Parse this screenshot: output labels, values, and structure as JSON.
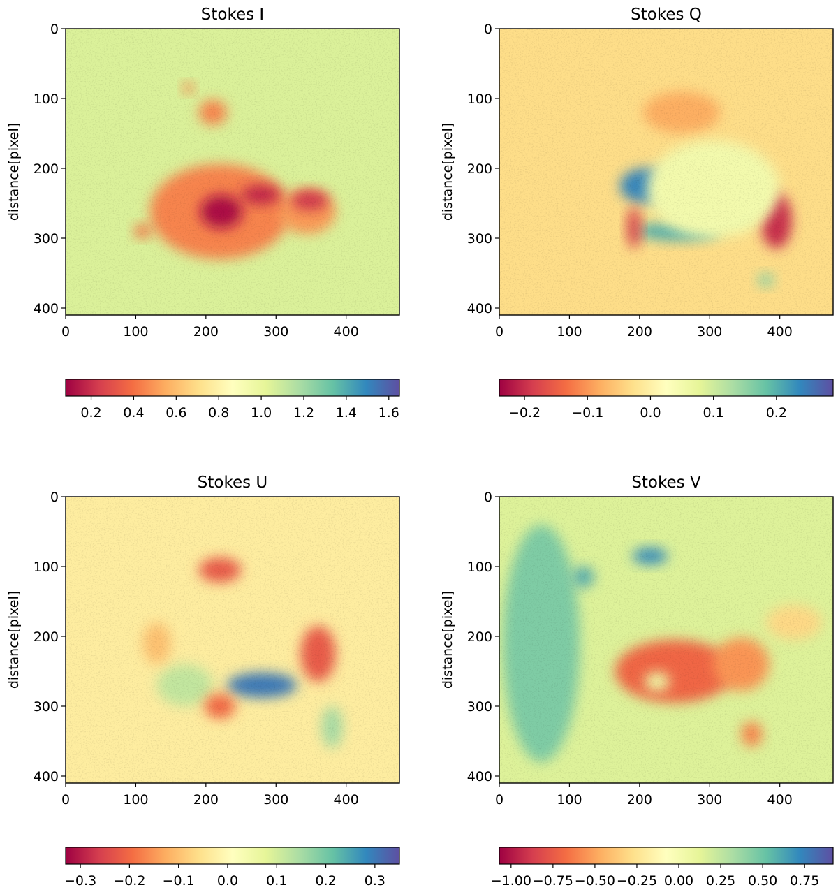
{
  "figure": {
    "y_label": "distance[pixel]"
  },
  "chart_data": [
    {
      "type": "heatmap",
      "title": "Stokes I",
      "xlabel": "",
      "ylabel": "distance[pixel]",
      "xlim": [
        0,
        476
      ],
      "ylim": [
        410,
        0
      ],
      "x_ticks": [
        0,
        100,
        200,
        300,
        400
      ],
      "y_ticks": [
        0,
        100,
        200,
        300,
        400
      ],
      "colormap": "Spectral",
      "colorbar": {
        "range": [
          0.08,
          1.65
        ],
        "ticks": [
          "0.2",
          "0.4",
          "0.6",
          "0.8",
          "1.0",
          "1.2",
          "1.4",
          "1.6"
        ],
        "tick_values": [
          0.2,
          0.4,
          0.6,
          0.8,
          1.0,
          1.2,
          1.4,
          1.6
        ]
      },
      "background_value": 1.05,
      "features": [
        {
          "x": 220,
          "y": 262,
          "rx": 100,
          "ry": 68,
          "value": 0.45
        },
        {
          "x": 345,
          "y": 262,
          "rx": 40,
          "ry": 32,
          "value": 0.5
        },
        {
          "x": 222,
          "y": 262,
          "rx": 30,
          "ry": 24,
          "value": 0.12
        },
        {
          "x": 278,
          "y": 238,
          "rx": 28,
          "ry": 14,
          "value": 0.18
        },
        {
          "x": 348,
          "y": 246,
          "rx": 26,
          "ry": 14,
          "value": 0.22
        },
        {
          "x": 210,
          "y": 120,
          "rx": 20,
          "ry": 18,
          "value": 0.45
        },
        {
          "x": 110,
          "y": 290,
          "rx": 12,
          "ry": 10,
          "value": 0.4
        },
        {
          "x": 175,
          "y": 85,
          "rx": 8,
          "ry": 8,
          "value": 0.45
        }
      ]
    },
    {
      "type": "heatmap",
      "title": "Stokes Q",
      "xlabel": "",
      "ylabel": "distance[pixel]",
      "xlim": [
        0,
        476
      ],
      "ylim": [
        410,
        0
      ],
      "x_ticks": [
        0,
        100,
        200,
        300,
        400
      ],
      "y_ticks": [
        0,
        100,
        200,
        300,
        400
      ],
      "colormap": "Spectral",
      "colorbar": {
        "range": [
          -0.24,
          0.29
        ],
        "ticks": [
          "−0.2",
          "−0.1",
          "0.0",
          "0.1",
          "0.2"
        ],
        "tick_values": [
          -0.2,
          -0.1,
          0.0,
          0.1,
          0.2
        ]
      },
      "background_value": -0.03,
      "features": [
        {
          "x": 210,
          "y": 225,
          "rx": 38,
          "ry": 25,
          "value": 0.24
        },
        {
          "x": 255,
          "y": 290,
          "rx": 60,
          "ry": 14,
          "value": 0.2
        },
        {
          "x": 330,
          "y": 262,
          "rx": 25,
          "ry": 12,
          "value": 0.15
        },
        {
          "x": 395,
          "y": 275,
          "rx": 22,
          "ry": 40,
          "value": -0.2
        },
        {
          "x": 192,
          "y": 285,
          "rx": 10,
          "ry": 30,
          "value": -0.18
        },
        {
          "x": 380,
          "y": 360,
          "rx": 12,
          "ry": 10,
          "value": 0.15
        },
        {
          "x": 260,
          "y": 120,
          "rx": 55,
          "ry": 30,
          "value": -0.08
        },
        {
          "x": 305,
          "y": 230,
          "rx": 95,
          "ry": 70,
          "value": 0.05
        }
      ]
    },
    {
      "type": "heatmap",
      "title": "Stokes U",
      "xlabel": "",
      "ylabel": "distance[pixel]",
      "xlim": [
        0,
        476
      ],
      "ylim": [
        410,
        0
      ],
      "x_ticks": [
        0,
        100,
        200,
        300,
        400
      ],
      "y_ticks": [
        0,
        100,
        200,
        300,
        400
      ],
      "colormap": "Spectral",
      "colorbar": {
        "range": [
          -0.33,
          0.35
        ],
        "ticks": [
          "−0.3",
          "−0.2",
          "−0.1",
          "0.0",
          "0.1",
          "0.2",
          "0.3"
        ],
        "tick_values": [
          -0.3,
          -0.2,
          -0.1,
          0.0,
          0.1,
          0.2,
          0.3
        ]
      },
      "background_value": -0.03,
      "features": [
        {
          "x": 280,
          "y": 270,
          "rx": 50,
          "ry": 18,
          "value": 0.3
        },
        {
          "x": 170,
          "y": 270,
          "rx": 40,
          "ry": 30,
          "value": 0.12
        },
        {
          "x": 220,
          "y": 105,
          "rx": 30,
          "ry": 18,
          "value": -0.22
        },
        {
          "x": 360,
          "y": 225,
          "rx": 25,
          "ry": 40,
          "value": -0.22
        },
        {
          "x": 220,
          "y": 300,
          "rx": 22,
          "ry": 18,
          "value": -0.2
        },
        {
          "x": 380,
          "y": 330,
          "rx": 15,
          "ry": 30,
          "value": 0.15
        },
        {
          "x": 130,
          "y": 210,
          "rx": 20,
          "ry": 30,
          "value": -0.1
        }
      ]
    },
    {
      "type": "heatmap",
      "title": "Stokes V",
      "xlabel": "",
      "ylabel": "distance[pixel]",
      "xlim": [
        0,
        476
      ],
      "ylim": [
        410,
        0
      ],
      "x_ticks": [
        0,
        100,
        200,
        300,
        400
      ],
      "y_ticks": [
        0,
        100,
        200,
        300,
        400
      ],
      "colormap": "Spectral",
      "colorbar": {
        "range": [
          -1.07,
          0.92
        ],
        "ticks": [
          "−1.00",
          "−0.75",
          "−0.50",
          "−0.25",
          "0.00",
          "0.25",
          "0.50",
          "0.75"
        ],
        "tick_values": [
          -1.0,
          -0.75,
          -0.5,
          -0.25,
          0.0,
          0.25,
          0.5,
          0.75
        ]
      },
      "background_value": 0.15,
      "features": [
        {
          "x": 250,
          "y": 250,
          "rx": 85,
          "ry": 45,
          "value": -0.7
        },
        {
          "x": 345,
          "y": 240,
          "rx": 40,
          "ry": 38,
          "value": -0.55
        },
        {
          "x": 225,
          "y": 265,
          "rx": 18,
          "ry": 14,
          "value": 0.05
        },
        {
          "x": 360,
          "y": 340,
          "rx": 15,
          "ry": 18,
          "value": -0.6
        },
        {
          "x": 60,
          "y": 210,
          "rx": 55,
          "ry": 170,
          "value": 0.45
        },
        {
          "x": 215,
          "y": 85,
          "rx": 25,
          "ry": 12,
          "value": 0.7
        },
        {
          "x": 120,
          "y": 115,
          "rx": 15,
          "ry": 15,
          "value": 0.6
        },
        {
          "x": 420,
          "y": 180,
          "rx": 40,
          "ry": 25,
          "value": -0.3
        }
      ]
    }
  ]
}
